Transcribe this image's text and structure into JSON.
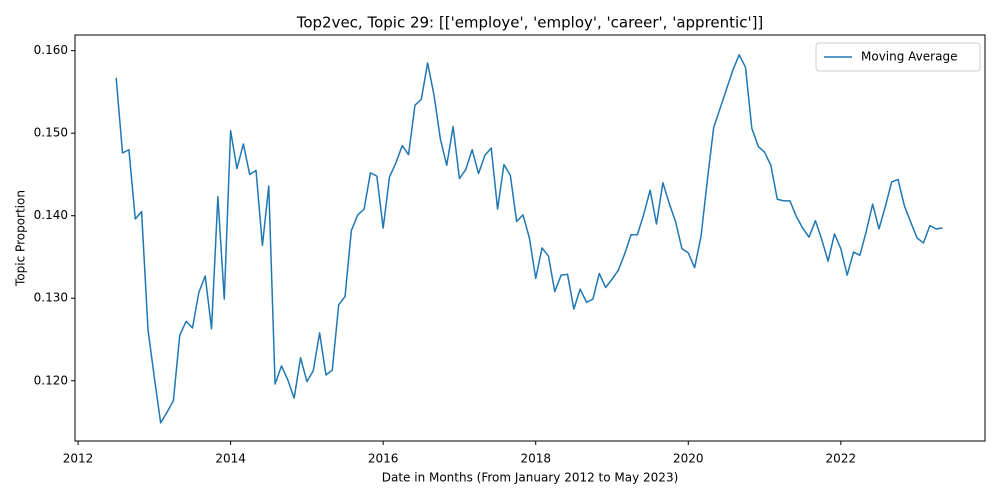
{
  "chart_data": {
    "type": "line",
    "title": "Top2vec, Topic 29: [['employe', 'employ', 'career', 'apprentic']]",
    "xlabel": "Date in Months (From January 2012 to May 2023)",
    "ylabel": "Topic Proportion",
    "x": [
      2012.5,
      2012.583,
      2012.667,
      2012.75,
      2012.833,
      2012.917,
      2013.0,
      2013.083,
      2013.167,
      2013.25,
      2013.333,
      2013.417,
      2013.5,
      2013.583,
      2013.667,
      2013.75,
      2013.833,
      2013.917,
      2014.0,
      2014.083,
      2014.167,
      2014.25,
      2014.333,
      2014.417,
      2014.5,
      2014.583,
      2014.667,
      2014.75,
      2014.833,
      2014.917,
      2015.0,
      2015.083,
      2015.167,
      2015.25,
      2015.333,
      2015.417,
      2015.5,
      2015.583,
      2015.667,
      2015.75,
      2015.833,
      2015.917,
      2016.0,
      2016.083,
      2016.167,
      2016.25,
      2016.333,
      2016.417,
      2016.5,
      2016.583,
      2016.667,
      2016.75,
      2016.833,
      2016.917,
      2017.0,
      2017.083,
      2017.167,
      2017.25,
      2017.333,
      2017.417,
      2017.5,
      2017.583,
      2017.667,
      2017.75,
      2017.833,
      2017.917,
      2018.0,
      2018.083,
      2018.167,
      2018.25,
      2018.333,
      2018.417,
      2018.5,
      2018.583,
      2018.667,
      2018.75,
      2018.833,
      2018.917,
      2019.0,
      2019.083,
      2019.167,
      2019.25,
      2019.333,
      2019.417,
      2019.5,
      2019.583,
      2019.667,
      2019.75,
      2019.833,
      2019.917,
      2020.0,
      2020.083,
      2020.167,
      2020.25,
      2020.333,
      2020.417,
      2020.5,
      2020.583,
      2020.667,
      2020.75,
      2020.833,
      2020.917,
      2021.0,
      2021.083,
      2021.167,
      2021.25,
      2021.333,
      2021.417,
      2021.5,
      2021.583,
      2021.667,
      2021.75,
      2021.833,
      2021.917,
      2022.0,
      2022.083,
      2022.167,
      2022.25,
      2022.333,
      2022.417,
      2022.5,
      2022.583,
      2022.667,
      2022.75,
      2022.833,
      2022.917,
      2023.0,
      2023.083,
      2023.167,
      2023.25,
      2023.333
    ],
    "series": [
      {
        "name": "Moving Average",
        "color": "#1f77b4",
        "values": [
          0.1567,
          0.1476,
          0.148,
          0.1396,
          0.1405,
          0.1262,
          0.1204,
          0.1149,
          0.1162,
          0.1176,
          0.1255,
          0.1272,
          0.1264,
          0.1307,
          0.1327,
          0.1263,
          0.1423,
          0.1299,
          0.1503,
          0.1457,
          0.1487,
          0.145,
          0.1455,
          0.1364,
          0.1436,
          0.1196,
          0.1218,
          0.1201,
          0.1179,
          0.1228,
          0.1199,
          0.1212,
          0.1258,
          0.1207,
          0.1213,
          0.1292,
          0.1302,
          0.1382,
          0.1401,
          0.1408,
          0.1452,
          0.1448,
          0.1385,
          0.1447,
          0.1464,
          0.1485,
          0.1474,
          0.1534,
          0.1541,
          0.1585,
          0.1546,
          0.1493,
          0.1461,
          0.1508,
          0.1445,
          0.1456,
          0.148,
          0.1451,
          0.1473,
          0.1482,
          0.1408,
          0.1462,
          0.1449,
          0.1393,
          0.1401,
          0.1373,
          0.1324,
          0.1361,
          0.1351,
          0.1308,
          0.1328,
          0.1329,
          0.1287,
          0.1311,
          0.1295,
          0.1299,
          0.133,
          0.1313,
          0.1323,
          0.1334,
          0.1354,
          0.1377,
          0.1377,
          0.1402,
          0.1431,
          0.139,
          0.144,
          0.1415,
          0.1393,
          0.136,
          0.1355,
          0.1337,
          0.1375,
          0.1443,
          0.1507,
          0.153,
          0.1553,
          0.1576,
          0.1595,
          0.158,
          0.1506,
          0.1484,
          0.1477,
          0.1461,
          0.142,
          0.1418,
          0.1418,
          0.1399,
          0.1385,
          0.1374,
          0.1394,
          0.1371,
          0.1345,
          0.1378,
          0.136,
          0.1328,
          0.1356,
          0.1352,
          0.1381,
          0.1414,
          0.1384,
          0.1411,
          0.1441,
          0.1444,
          0.1412,
          0.1392,
          0.1373,
          0.1367,
          0.1388,
          0.1384,
          0.1385
        ]
      }
    ],
    "xlim": [
      2011.96,
      2023.89
    ],
    "xticks": [
      2012,
      2014,
      2016,
      2018,
      2020,
      2022
    ],
    "ylim": [
      0.1127,
      0.1619
    ],
    "yticks": [
      {
        "value": 0.12,
        "label": "0.120"
      },
      {
        "value": 0.13,
        "label": "0.130"
      },
      {
        "value": 0.14,
        "label": "0.140"
      },
      {
        "value": 0.15,
        "label": "0.150"
      },
      {
        "value": 0.16,
        "label": "0.160"
      }
    ],
    "grid": false,
    "legend": "upper right"
  }
}
